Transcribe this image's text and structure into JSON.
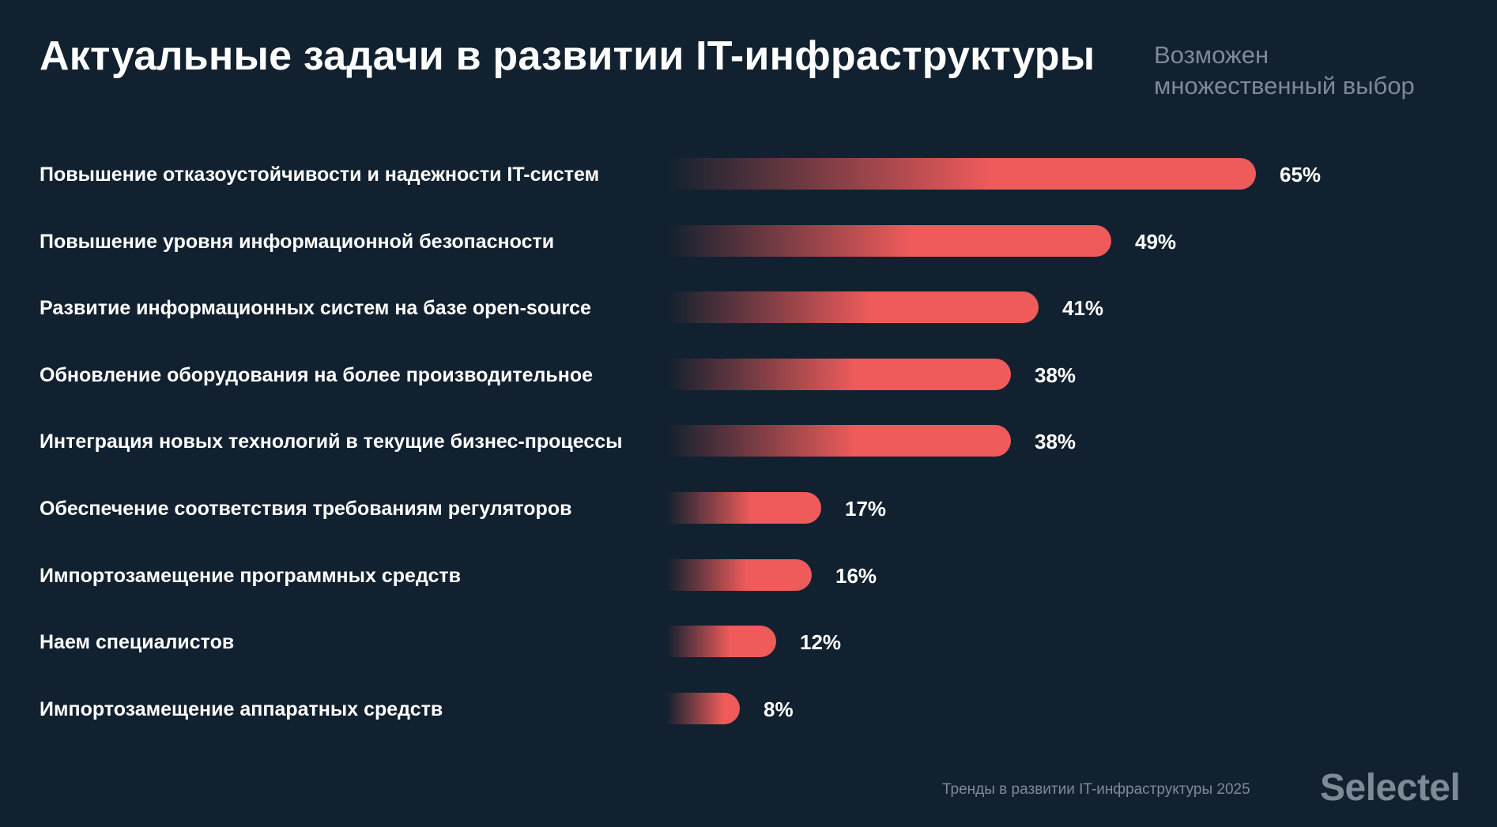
{
  "header": {
    "title": "Актуальные задачи в развитии IT-инфраструктуры",
    "note_line1": "Возможен",
    "note_line2": "множественный выбор"
  },
  "footer": {
    "source": "Тренды в развитии IT-инфраструктуры 2025",
    "logo": "Selectel"
  },
  "colors": {
    "background": "#12212f",
    "bar_start": "#12212f",
    "bar_end": "#ef5b5b",
    "muted_text": "#7e8a96"
  },
  "chart_data": {
    "type": "bar",
    "orientation": "horizontal",
    "title": "Актуальные задачи в развитии IT-инфраструктуры",
    "categories": [
      "Повышение отказоустойчивости и надежности IT-систем",
      "Повышение уровня информационной безопасности",
      "Развитие информационных систем на базе open-source",
      "Обновление оборудования на более производительное",
      "Интеграция новых технологий в текущие бизнес-процессы",
      "Обеспечение соответствия требованиям регуляторов",
      "Импортозамещение программных средств",
      "Наем специалистов",
      "Импортозамещение аппаратных средств"
    ],
    "values": [
      65,
      49,
      41,
      38,
      38,
      17,
      16,
      12,
      8
    ],
    "value_labels": [
      "65%",
      "49%",
      "41%",
      "38%",
      "38%",
      "17%",
      "16%",
      "12%",
      "8%"
    ],
    "unit": "%",
    "grid": false,
    "legend": "none"
  }
}
